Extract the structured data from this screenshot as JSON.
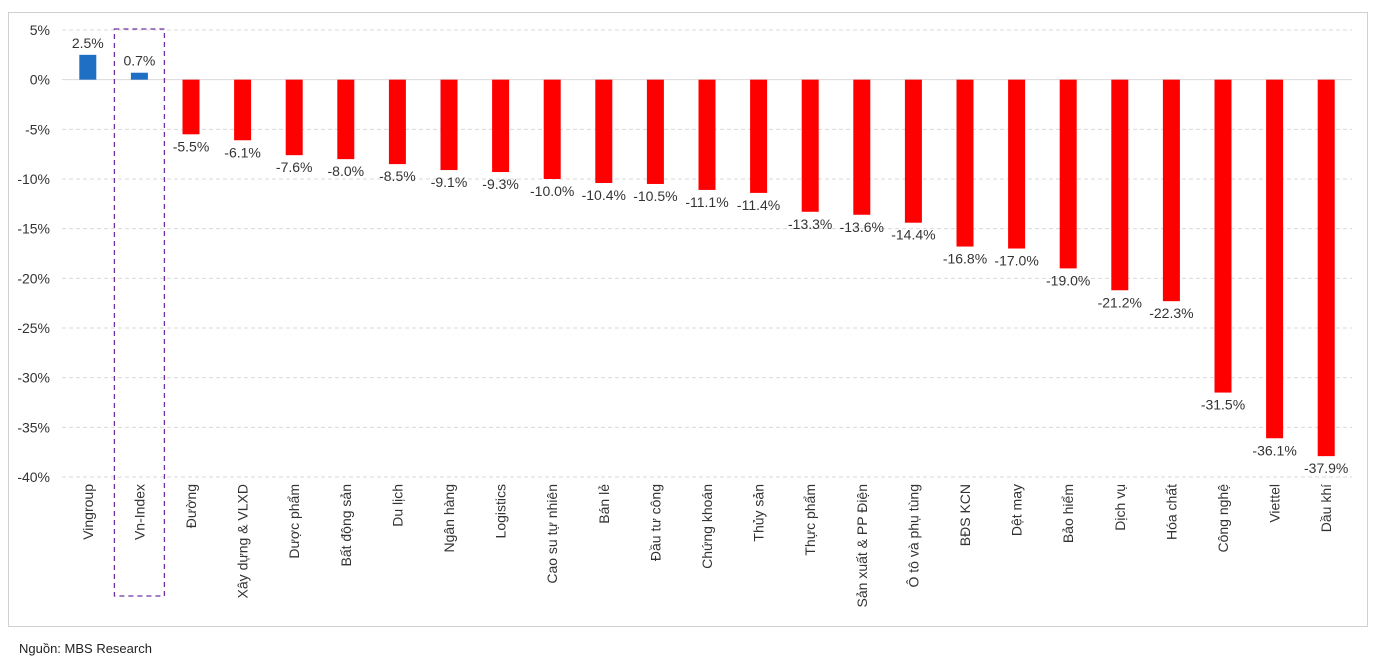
{
  "source_note": "Nguồn: MBS Research",
  "colors": {
    "positive": "#1f6fc5",
    "negative": "#ff0000",
    "highlight_box": "#7030a0",
    "grid": "#d9d9d9"
  },
  "chart_data": {
    "type": "bar",
    "title": "",
    "xlabel": "",
    "ylabel": "",
    "ylim": [
      -40,
      5
    ],
    "yticks": [
      "5%",
      "0%",
      "-5%",
      "-10%",
      "-15%",
      "-20%",
      "-25%",
      "-30%",
      "-35%",
      "-40%"
    ],
    "grid": true,
    "highlighted_category": "Vn-Index",
    "categories": [
      "Vingroup",
      "Vn-Index",
      "Đường",
      "Xây dựng & VLXD",
      "Dược phẩm",
      "Bất động sản",
      "Du lịch",
      "Ngân hàng",
      "Logistics",
      "Cao su tự nhiên",
      "Bán lẻ",
      "Đầu tư công",
      "Chứng khoán",
      "Thủy sản",
      "Thực phẩm",
      "Sản xuất & PP Điện",
      "Ô tô và phụ tùng",
      "BĐS KCN",
      "Dệt may",
      "Bảo hiểm",
      "Dịch vụ",
      "Hóa chất",
      "Công nghệ",
      "Viettel",
      "Dầu khí"
    ],
    "values": [
      2.5,
      0.7,
      -5.5,
      -6.1,
      -7.6,
      -8.0,
      -8.5,
      -9.1,
      -9.3,
      -10.0,
      -10.4,
      -10.5,
      -11.1,
      -11.4,
      -13.3,
      -13.6,
      -14.4,
      -16.8,
      -17.0,
      -19.0,
      -21.2,
      -22.3,
      -31.5,
      -36.1,
      -37.9
    ],
    "labels": [
      "2.5%",
      "0.7%",
      "-5.5%",
      "-6.1%",
      "-7.6%",
      "-8.0%",
      "-8.5%",
      "-9.1%",
      "-9.3%",
      "-10.0%",
      "-10.4%",
      "-10.5%",
      "-11.1%",
      "-11.4%",
      "-13.3%",
      "-13.6%",
      "-14.4%",
      "-16.8%",
      "-17.0%",
      "-19.0%",
      "-21.2%",
      "-22.3%",
      "-31.5%",
      "-36.1%",
      "-37.9%"
    ]
  }
}
